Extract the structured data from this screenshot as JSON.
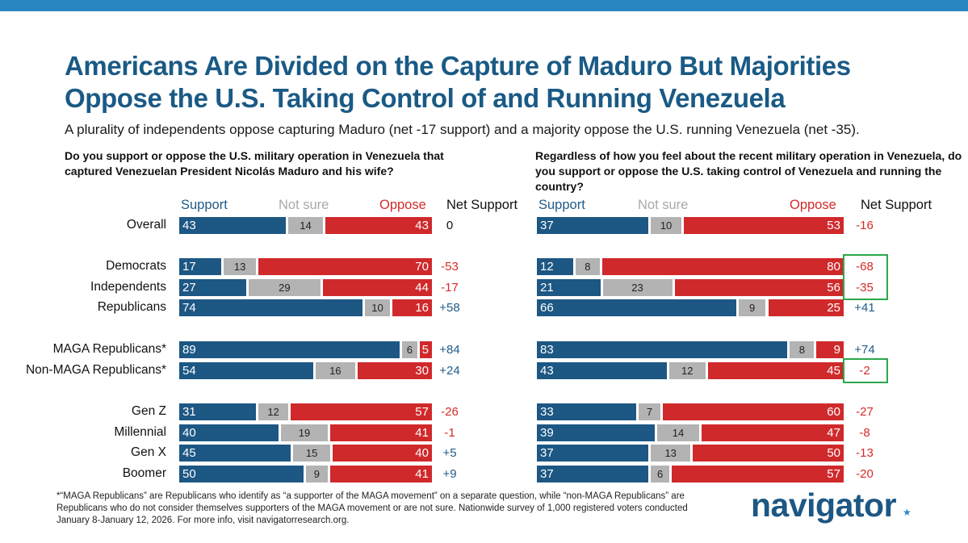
{
  "title": "Americans Are Divided on the Capture of Maduro But Majorities Oppose the U.S. Taking Control of and Running Venezuela",
  "subtitle": "A plurality of independents oppose capturing Maduro (net -17 support) and a majority oppose the U.S. running Venezuela (net -35).",
  "footnote": "*“MAGA Republicans” are Republicans who identify as “a supporter of the MAGA movement” on a separate question, while “non-MAGA Republicans” are Republicans who do not consider themselves supporters of the MAGA movement or are not sure. Nationwide survey of 1,000 registered voters conducted January 8-January 12, 2026. For more info, visit navigatorresearch.org.",
  "logo": {
    "text": "navigator",
    "star": "★"
  },
  "colors": {
    "support": "#1d5784",
    "notsure": "#b3b3b3",
    "oppose": "#d0292b",
    "highlight": "#2aa84a",
    "title": "#1a5a85"
  },
  "headers": {
    "support": "Support",
    "notsure": "Not sure",
    "oppose": "Oppose",
    "net": "Net Support"
  },
  "chart_data": [
    {
      "type": "bar",
      "stacked": true,
      "orientation": "horizontal",
      "question": "Do you support or oppose the U.S. military operation in Venezuela that captured Venezuelan President Nicolás Maduro and his wife?",
      "categories": [
        "Overall",
        "Democrats",
        "Independents",
        "Republicans",
        "MAGA Republicans*",
        "Non-MAGA Republicans*",
        "Gen Z",
        "Millennial",
        "Gen X",
        "Boomer"
      ],
      "series": [
        {
          "name": "Support",
          "values": [
            43,
            17,
            27,
            74,
            89,
            54,
            31,
            40,
            45,
            50
          ]
        },
        {
          "name": "Not sure",
          "values": [
            14,
            13,
            29,
            10,
            6,
            16,
            12,
            19,
            15,
            9
          ]
        },
        {
          "name": "Oppose",
          "values": [
            43,
            70,
            44,
            16,
            5,
            30,
            57,
            41,
            40,
            41
          ]
        }
      ],
      "net_support": [
        "0",
        "-53",
        "-17",
        "+58",
        "+84",
        "+24",
        "-26",
        "-1",
        "+5",
        "+9"
      ],
      "highlighted": []
    },
    {
      "type": "bar",
      "stacked": true,
      "orientation": "horizontal",
      "question": "Regardless of how you feel about the recent military operation in Venezuela, do you support or oppose the U.S. taking control of Venezuela and running the country?",
      "categories": [
        "Overall",
        "Democrats",
        "Independents",
        "Republicans",
        "MAGA Republicans*",
        "Non-MAGA Republicans*",
        "Gen Z",
        "Millennial",
        "Gen X",
        "Boomer"
      ],
      "series": [
        {
          "name": "Support",
          "values": [
            37,
            12,
            21,
            66,
            83,
            43,
            33,
            39,
            37,
            37
          ]
        },
        {
          "name": "Not sure",
          "values": [
            10,
            8,
            23,
            9,
            8,
            12,
            7,
            14,
            13,
            6
          ]
        },
        {
          "name": "Oppose",
          "values": [
            53,
            80,
            56,
            25,
            9,
            45,
            60,
            47,
            50,
            57
          ]
        }
      ],
      "net_support": [
        "-16",
        "-68",
        "-35",
        "+41",
        "+74",
        "-2",
        "-27",
        "-8",
        "-13",
        "-20"
      ],
      "highlighted": [
        [
          1,
          2
        ],
        [
          5
        ]
      ]
    }
  ]
}
